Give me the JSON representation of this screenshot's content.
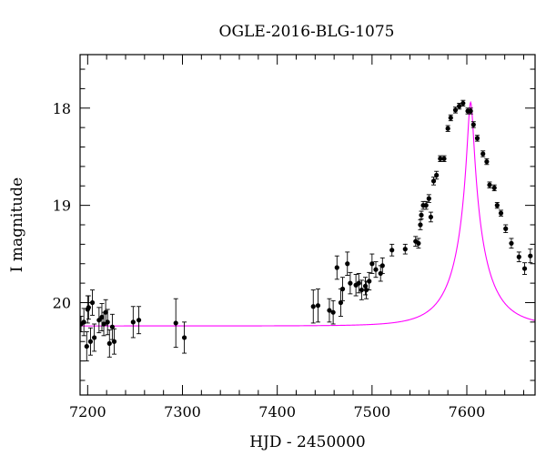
{
  "chart_data": {
    "type": "scatter",
    "title": "OGLE-2016-BLG-1075",
    "xlabel": "HJD - 2450000",
    "ylabel": "I magnitude",
    "xlim": [
      7192,
      7672
    ],
    "ylim": [
      20.95,
      17.45
    ],
    "y_inverted": true,
    "grid": false,
    "x_major_ticks": [
      7200,
      7300,
      7400,
      7500,
      7600
    ],
    "x_tick_labels": [
      "7200",
      "7300",
      "7400",
      "7500",
      "7600"
    ],
    "x_minor_step": 20,
    "y_major_ticks": [
      18,
      19,
      20
    ],
    "y_tick_labels": [
      "18",
      "19",
      "20"
    ],
    "y_minor_step": 0.2,
    "colors": {
      "model": "#ff00ff",
      "points": "#000000",
      "axes": "#000000"
    },
    "model": {
      "type": "point-lens",
      "t0": 7604,
      "tE": 38,
      "u0": 0.08,
      "baseline_mag": 20.24,
      "peak_mag": 17.94
    },
    "series": [
      {
        "marker": "filled-circle",
        "x": [
          7193,
          7196,
          7199,
          7200,
          7201,
          7203,
          7205,
          7207,
          7212,
          7215,
          7217,
          7219,
          7221,
          7223,
          7226,
          7228,
          7248,
          7254,
          7293,
          7302,
          7438,
          7443,
          7455,
          7459,
          7463,
          7467,
          7469,
          7474,
          7477,
          7483,
          7486,
          7489,
          7493,
          7494,
          7497,
          7500,
          7504,
          7509,
          7511,
          7521,
          7535,
          7546,
          7549,
          7551,
          7552,
          7554,
          7557,
          7560,
          7562,
          7565,
          7568,
          7572,
          7576,
          7580,
          7583,
          7588,
          7592,
          7596,
          7601,
          7604,
          7607,
          7611,
          7617,
          7621,
          7624,
          7629,
          7632,
          7636,
          7641,
          7647,
          7655,
          7661,
          7667
        ],
        "y": [
          20.22,
          20.2,
          20.45,
          20.07,
          20.05,
          20.4,
          20.0,
          20.36,
          20.18,
          20.15,
          20.22,
          20.1,
          20.2,
          20.42,
          20.25,
          20.4,
          20.2,
          20.18,
          20.21,
          20.36,
          20.04,
          20.03,
          20.08,
          20.1,
          19.64,
          20.0,
          19.86,
          19.6,
          19.8,
          19.82,
          19.8,
          19.87,
          19.83,
          19.87,
          19.78,
          19.6,
          19.66,
          19.7,
          19.62,
          19.46,
          19.45,
          19.37,
          19.39,
          19.2,
          19.1,
          19.0,
          19.0,
          18.93,
          19.12,
          18.75,
          18.69,
          18.52,
          18.52,
          18.21,
          18.1,
          18.02,
          17.98,
          17.95,
          18.03,
          18.03,
          18.17,
          18.31,
          18.47,
          18.55,
          18.79,
          18.82,
          19.0,
          19.08,
          19.24,
          19.39,
          19.53,
          19.65,
          19.52
        ],
        "err": [
          0.08,
          0.14,
          0.15,
          0.14,
          0.12,
          0.14,
          0.13,
          0.14,
          0.13,
          0.14,
          0.12,
          0.13,
          0.13,
          0.14,
          0.13,
          0.13,
          0.16,
          0.14,
          0.25,
          0.16,
          0.17,
          0.17,
          0.12,
          0.12,
          0.12,
          0.14,
          0.12,
          0.12,
          0.11,
          0.11,
          0.1,
          0.1,
          0.09,
          0.09,
          0.09,
          0.1,
          0.08,
          0.08,
          0.08,
          0.06,
          0.05,
          0.05,
          0.05,
          0.05,
          0.04,
          0.04,
          0.04,
          0.04,
          0.05,
          0.04,
          0.04,
          0.03,
          0.03,
          0.03,
          0.03,
          0.03,
          0.03,
          0.03,
          0.03,
          0.03,
          0.03,
          0.03,
          0.03,
          0.03,
          0.03,
          0.03,
          0.03,
          0.03,
          0.04,
          0.05,
          0.05,
          0.06,
          0.07
        ]
      }
    ]
  }
}
